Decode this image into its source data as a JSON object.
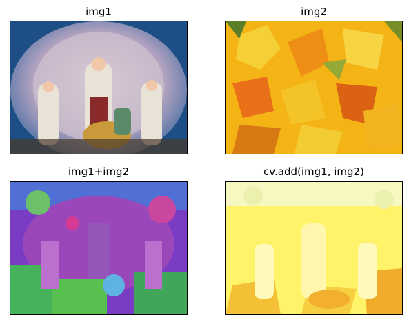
{
  "figure": {
    "panels": [
      {
        "title": "img1",
        "depicts": "durga-idol-photo"
      },
      {
        "title": "img2",
        "depicts": "autumn-maple-leaves-photo"
      },
      {
        "title": "img1+img2",
        "depicts": "numpy-wraparound-sum"
      },
      {
        "title": "cv.add(img1, img2)",
        "depicts": "saturated-sum"
      }
    ]
  },
  "colors": {
    "img1_bg": "#1d4f86",
    "img2_base": "#f4b416",
    "sum_wrap_base": "#7a3cc4",
    "sum_sat_base": "#fff36a"
  }
}
